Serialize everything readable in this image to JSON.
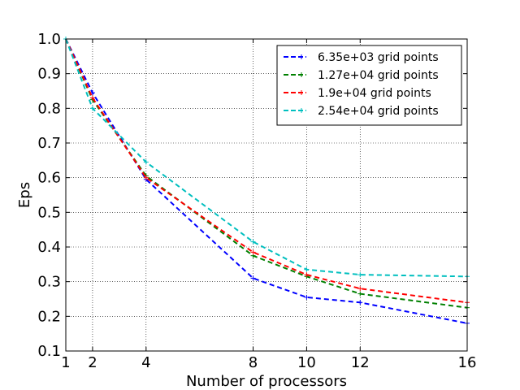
{
  "chart_data": {
    "type": "line",
    "title": "",
    "xlabel": "Number of processors",
    "ylabel": "Eps",
    "xlim": [
      1,
      16
    ],
    "ylim": [
      0.1,
      1.0
    ],
    "x_ticks": [
      1,
      2,
      4,
      8,
      10,
      12,
      16
    ],
    "y_ticks": [
      0.1,
      0.2,
      0.3,
      0.4,
      0.5,
      0.6,
      0.7,
      0.8,
      0.9,
      1.0
    ],
    "x_tick_labels": [
      "1",
      "2",
      "4",
      "8",
      "10",
      "12",
      "16"
    ],
    "y_tick_labels": [
      "0.1",
      "0.2",
      "0.3",
      "0.4",
      "0.5",
      "0.6",
      "0.7",
      "0.8",
      "0.9",
      "1.0"
    ],
    "grid": true,
    "legend_position": "top-right",
    "x": [
      1,
      2,
      4,
      8,
      10,
      12,
      16
    ],
    "series": [
      {
        "name": "6.35e+03 grid points",
        "color": "#0000ff",
        "values": [
          1.0,
          0.845,
          0.595,
          0.31,
          0.255,
          0.24,
          0.18
        ]
      },
      {
        "name": "1.27e+04 grid points",
        "color": "#008000",
        "values": [
          1.0,
          0.825,
          0.605,
          0.375,
          0.315,
          0.265,
          0.225
        ]
      },
      {
        "name": "1.9e+04 grid points",
        "color": "#ff0000",
        "values": [
          1.0,
          0.83,
          0.6,
          0.385,
          0.32,
          0.28,
          0.24
        ]
      },
      {
        "name": "2.54e+04 grid points",
        "color": "#00bfbf",
        "values": [
          1.0,
          0.8,
          0.645,
          0.415,
          0.335,
          0.32,
          0.315
        ]
      }
    ]
  }
}
